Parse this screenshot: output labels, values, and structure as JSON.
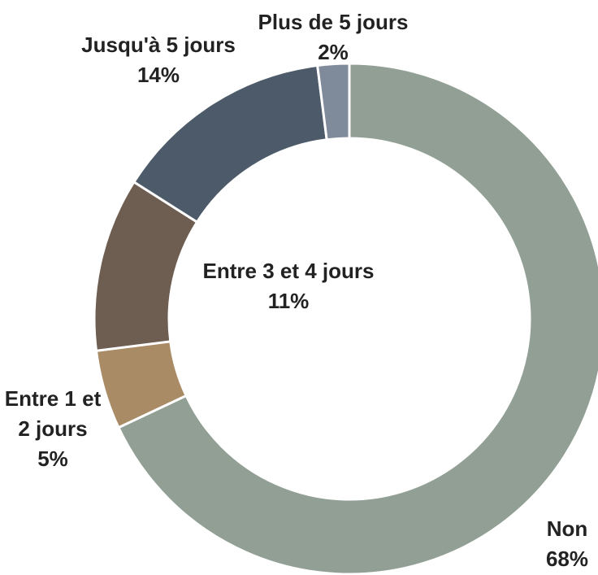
{
  "chart_data": {
    "type": "donut",
    "categories": [
      "Non",
      "Entre 1 et 2 jours",
      "Entre 3 et 4 jours",
      "Jusqu'à 5 jours",
      "Plus de 5 jours"
    ],
    "values": [
      68,
      5,
      11,
      14,
      2
    ],
    "value_labels": [
      "68%",
      "5%",
      "11%",
      "14%",
      "2%"
    ],
    "colors": [
      "#919f94",
      "#a98b66",
      "#6e5d51",
      "#4c5a69",
      "#7f8a9b"
    ]
  }
}
